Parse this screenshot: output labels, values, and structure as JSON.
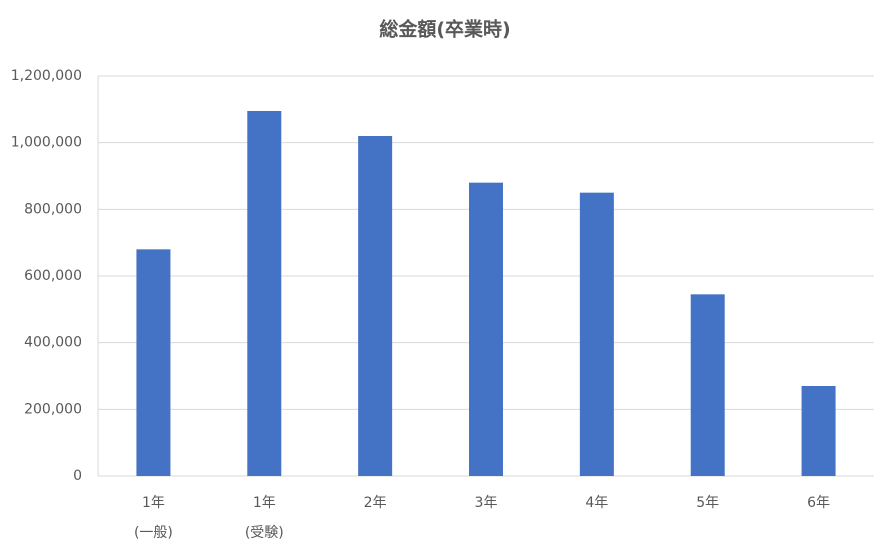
{
  "chart_data": {
    "type": "bar",
    "title": "総金額(卒業時)",
    "categories": [
      "1年\n(一般)",
      "1年\n(受験)",
      "2年",
      "3年",
      "4年",
      "5年",
      "6年"
    ],
    "values": [
      680000,
      1095000,
      1020000,
      880000,
      850000,
      545000,
      270000
    ],
    "color": "#4472c4",
    "ylim": [
      0,
      1200000
    ],
    "yticks": [
      0,
      {
        "value": 200000,
        "label": "200,000"
      },
      {
        "value": 400000,
        "label": "400,000"
      },
      {
        "value": 600000,
        "label": "600,000"
      },
      {
        "value": 800000,
        "label": "800,000"
      },
      {
        "value": 1000000,
        "label": "1,000,000"
      },
      {
        "value": 1200000,
        "label": "1,200,000"
      }
    ],
    "grid": true
  }
}
